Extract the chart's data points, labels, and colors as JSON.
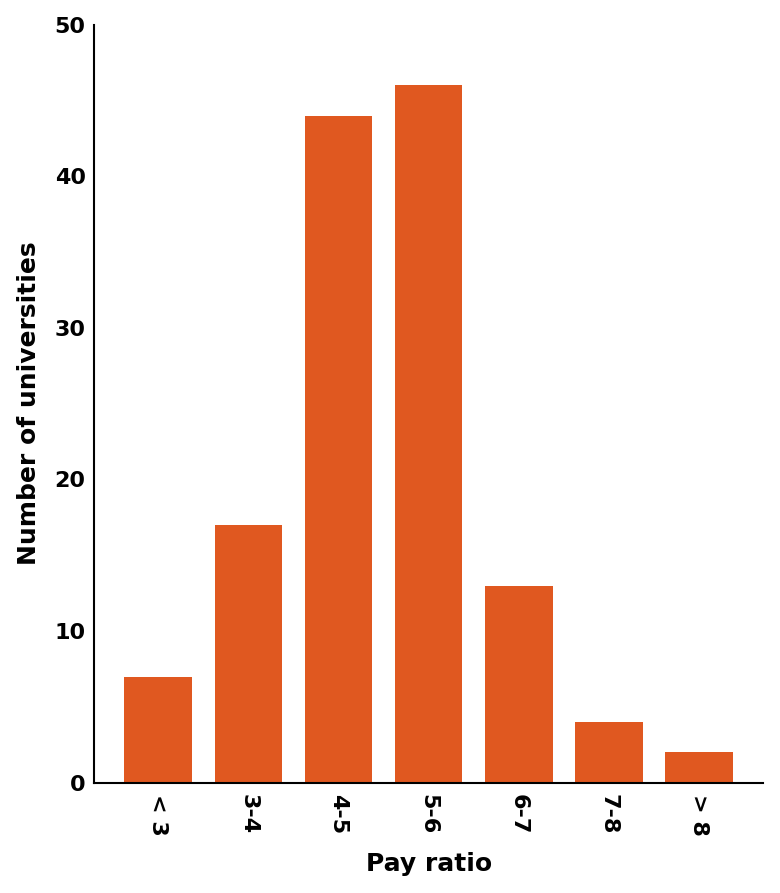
{
  "categories": [
    "< 3",
    "3-4",
    "4-5",
    "5-6",
    "6-7",
    "7-8",
    "> 8"
  ],
  "values": [
    7,
    17,
    44,
    46,
    13,
    4,
    2
  ],
  "bar_color": "#E05820",
  "xlabel": "Pay ratio",
  "ylabel": "Number of universities",
  "ylim": [
    0,
    50
  ],
  "yticks": [
    0,
    10,
    20,
    30,
    40,
    50
  ],
  "xlabel_fontsize": 18,
  "ylabel_fontsize": 18,
  "tick_fontsize": 16,
  "label_rotation": 270,
  "bar_width": 0.75,
  "background_color": "#ffffff",
  "edge_color": "none"
}
